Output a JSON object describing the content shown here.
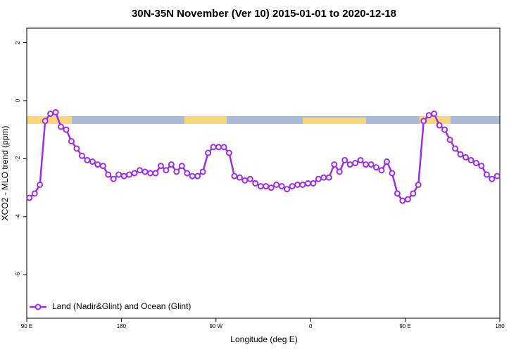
{
  "chart_data": {
    "type": "line",
    "title": "30N-35N November (Ver 10)   2015-01-01 to 2020-12-18",
    "x_label": "Longitude (deg E)",
    "y_label": "XCO2 - MLO trend (ppm)",
    "xlim": [
      90,
      540
    ],
    "ylim": [
      -7.5,
      2.5
    ],
    "xticks": [
      {
        "value": 90,
        "label": "90 E"
      },
      180,
      {
        "value": 270,
        "label": "90 W"
      },
      {
        "value": 360,
        "label": "0"
      },
      {
        "value": 450,
        "label": "90 E"
      },
      {
        "value": 540,
        "label": "180"
      }
    ],
    "yticks": [
      -6,
      -4,
      -2,
      0,
      2
    ],
    "legend": "bottom-left",
    "x": [
      92.5,
      97.5,
      102.5,
      107.5,
      112.5,
      117.5,
      122.5,
      127.5,
      132.5,
      137.5,
      142.5,
      147.5,
      152.5,
      157.5,
      162.5,
      167.5,
      172.5,
      177.5,
      182.5,
      187.5,
      192.5,
      197.5,
      202.5,
      207.5,
      212.5,
      217.5,
      222.5,
      227.5,
      232.5,
      237.5,
      242.5,
      247.5,
      252.5,
      257.5,
      262.5,
      267.5,
      272.5,
      277.5,
      282.5,
      287.5,
      292.5,
      297.5,
      302.5,
      307.5,
      312.5,
      317.5,
      322.5,
      327.5,
      332.5,
      337.5,
      342.5,
      347.5,
      352.5,
      357.5,
      362.5,
      367.5,
      372.5,
      377.5,
      382.5,
      387.5,
      392.5,
      397.5,
      402.5,
      407.5,
      412.5,
      417.5,
      422.5,
      427.5,
      432.5,
      437.5,
      442.5,
      447.5,
      452.5,
      457.5,
      462.5,
      467.5,
      472.5,
      477.5,
      482.5,
      487.5,
      492.5,
      497.5,
      502.5,
      507.5,
      512.5,
      517.5,
      522.5,
      527.5,
      532.5,
      537.5
    ],
    "series": [
      {
        "name": "Land (Nadir&Glint) and Ocean (Glint)",
        "color": "#9b30e0",
        "values": [
          -3.35,
          -3.2,
          -2.9,
          -0.7,
          -0.45,
          -0.4,
          -0.9,
          -1.0,
          -1.4,
          -1.65,
          -1.9,
          -2.05,
          -2.1,
          -2.2,
          -2.25,
          -2.55,
          -2.7,
          -2.55,
          -2.6,
          -2.55,
          -2.5,
          -2.4,
          -2.45,
          -2.5,
          -2.5,
          -2.25,
          -2.4,
          -2.2,
          -2.45,
          -2.25,
          -2.5,
          -2.6,
          -2.6,
          -2.45,
          -1.8,
          -1.6,
          -1.6,
          -1.6,
          -1.8,
          -2.6,
          -2.65,
          -2.75,
          -2.7,
          -2.85,
          -2.95,
          -2.95,
          -3.0,
          -2.9,
          -2.95,
          -3.05,
          -2.95,
          -2.9,
          -2.9,
          -2.85,
          -2.85,
          -2.7,
          -2.65,
          -2.65,
          -2.2,
          -2.45,
          -2.05,
          -2.2,
          -2.15,
          -2.05,
          -2.2,
          -2.2,
          -2.3,
          -2.4,
          -2.1,
          -2.5,
          -3.2,
          -3.45,
          -3.4,
          -3.2,
          -2.9,
          -0.7,
          -0.5,
          -0.45,
          -0.85,
          -1.0,
          -1.35,
          -1.65,
          -1.85,
          -1.95,
          -2.05,
          -2.15,
          -2.25,
          -2.55,
          -2.7,
          -2.6
        ]
      }
    ]
  }
}
